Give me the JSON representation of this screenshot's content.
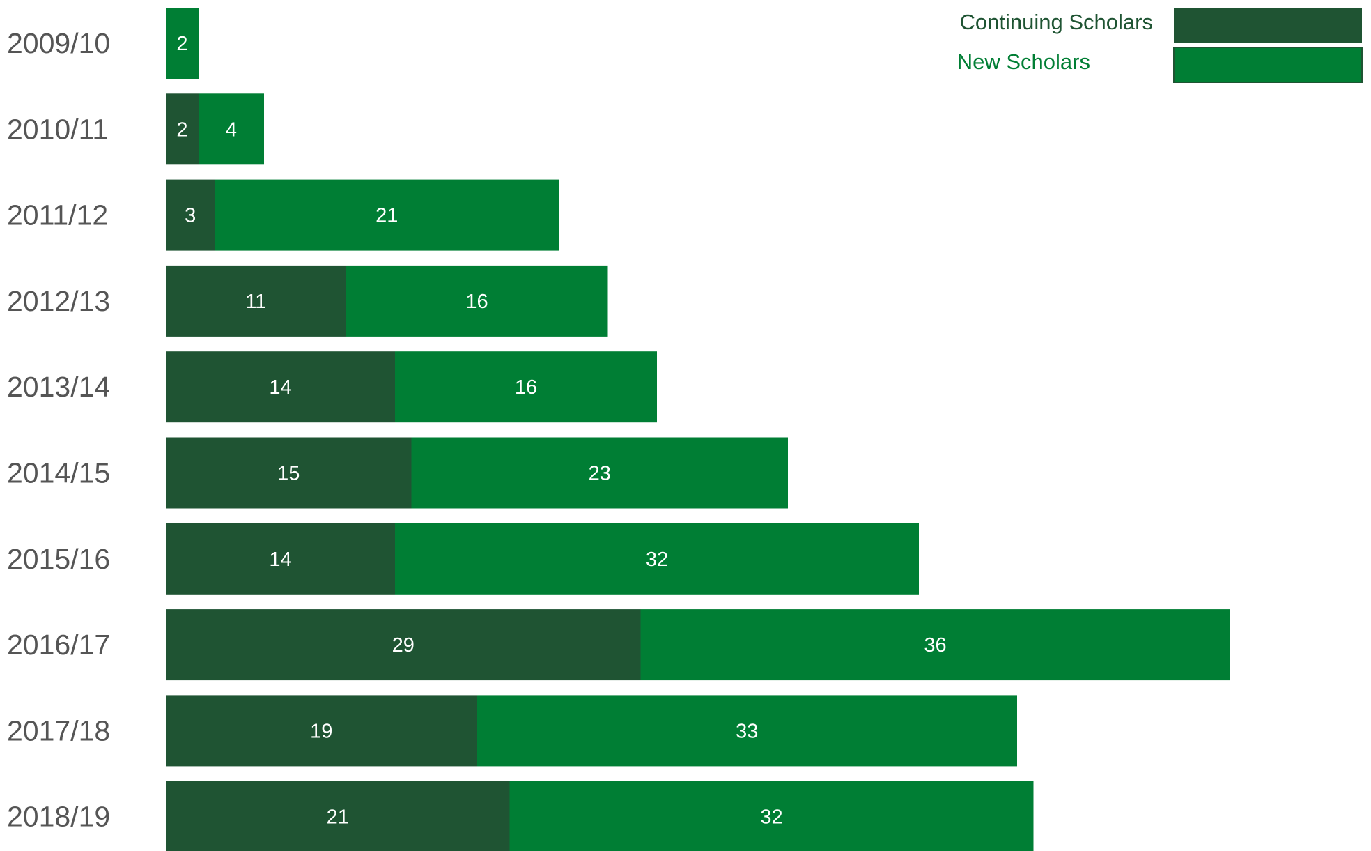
{
  "colors": {
    "continuing": "#1f5433",
    "new": "#007e34",
    "category_text": "#555555",
    "value_text": "#ffffff",
    "legend_continuing_text": "#1f5433",
    "legend_new_text": "#007e34"
  },
  "chart_data": {
    "type": "bar",
    "orientation": "horizontal",
    "stacked": true,
    "categories": [
      "2009/10",
      "2010/11",
      "2011/12",
      "2012/13",
      "2013/14",
      "2014/15",
      "2015/16",
      "2016/17",
      "2017/18",
      "2018/19"
    ],
    "series": [
      {
        "name": "Continuing Scholars",
        "values": [
          0,
          2,
          3,
          11,
          14,
          15,
          14,
          29,
          19,
          21
        ]
      },
      {
        "name": "New Scholars",
        "values": [
          2,
          4,
          21,
          16,
          16,
          23,
          32,
          36,
          33,
          32
        ]
      }
    ],
    "title": "",
    "xlabel": "",
    "ylabel": "",
    "xlim": [
      0,
      72
    ],
    "grid": false,
    "legend_position": "top-right"
  }
}
